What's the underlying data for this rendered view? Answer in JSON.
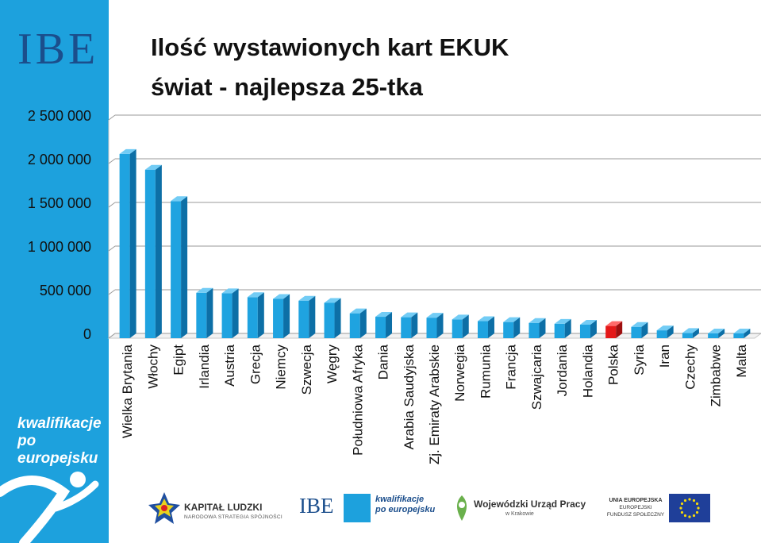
{
  "logo": {
    "text": "IBE"
  },
  "tagline": {
    "line1": "kwalifikacje",
    "line2": "po europejsku"
  },
  "title": {
    "line1": "Ilość wystawionych kart EKUK",
    "line2": "świat - najlepsza 25-tka"
  },
  "chart_data": {
    "type": "bar",
    "categories": [
      "Wielka Brytania",
      "Włochy",
      "Egipt",
      "Irlandia",
      "Austria",
      "Grecja",
      "Niemcy",
      "Szwecja",
      "Węgry",
      "Południowa Afryka",
      "Dania",
      "Arabia Saudyjska",
      "Zj. Emiraty Arabskie",
      "Norwegia",
      "Rumunia",
      "Francja",
      "Szwajcaria",
      "Jordania",
      "Holandia",
      "Polska",
      "Syria",
      "Iran",
      "Czechy",
      "Zimbabwe",
      "Malta"
    ],
    "values": [
      2110000,
      1930000,
      1570000,
      520000,
      515000,
      470000,
      450000,
      430000,
      405000,
      285000,
      245000,
      240000,
      235000,
      215000,
      195000,
      185000,
      175000,
      165000,
      155000,
      140000,
      130000,
      90000,
      60000,
      55000,
      55000
    ],
    "highlight": "Polska",
    "ylim": [
      0,
      2500000
    ],
    "yticks": [
      0,
      500000,
      1000000,
      1500000,
      2000000,
      2500000
    ],
    "ytick_labels": [
      "0",
      "500 000",
      "1 000 000",
      "1 500 000",
      "2 000 000",
      "2 500 000"
    ],
    "grid": true,
    "colors": {
      "bar": "#1fa3e0",
      "highlight": "#e41818"
    }
  },
  "footer": {
    "kapital_ludzki": "KAPITAŁ LUDZKI",
    "kapital_ludzki_sub": "NARODOWA STRATEGIA SPÓJNOŚCI",
    "ibe": "IBE",
    "kwalifikacje": "kwalifikacje",
    "po_europejsku": "po europejsku",
    "wup": "Wojewódzki Urząd Pracy",
    "wup_sub": "w Krakowie",
    "ue1": "UNIA EUROPEJSKA",
    "ue2": "EUROPEJSKI",
    "ue3": "FUNDUSZ SPOŁECZNY"
  }
}
